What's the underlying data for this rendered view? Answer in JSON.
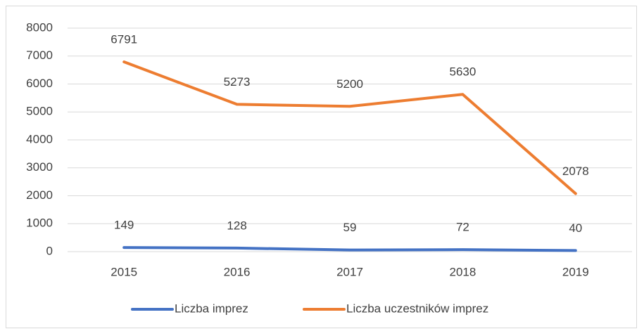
{
  "chart_data": {
    "type": "line",
    "categories": [
      "2015",
      "2016",
      "2017",
      "2018",
      "2019"
    ],
    "series": [
      {
        "name": "Liczba imprez",
        "color": "#4472c4",
        "values": [
          149,
          128,
          59,
          72,
          40
        ]
      },
      {
        "name": "Liczba uczestników imprez",
        "color": "#ed7d31",
        "values": [
          6791,
          5273,
          5200,
          5630,
          2078
        ]
      }
    ],
    "ylim": [
      0,
      8000
    ],
    "yticks": [
      0,
      1000,
      2000,
      3000,
      4000,
      5000,
      6000,
      7000,
      8000
    ],
    "grid": true,
    "legend": "bottom",
    "data_labels": true
  }
}
